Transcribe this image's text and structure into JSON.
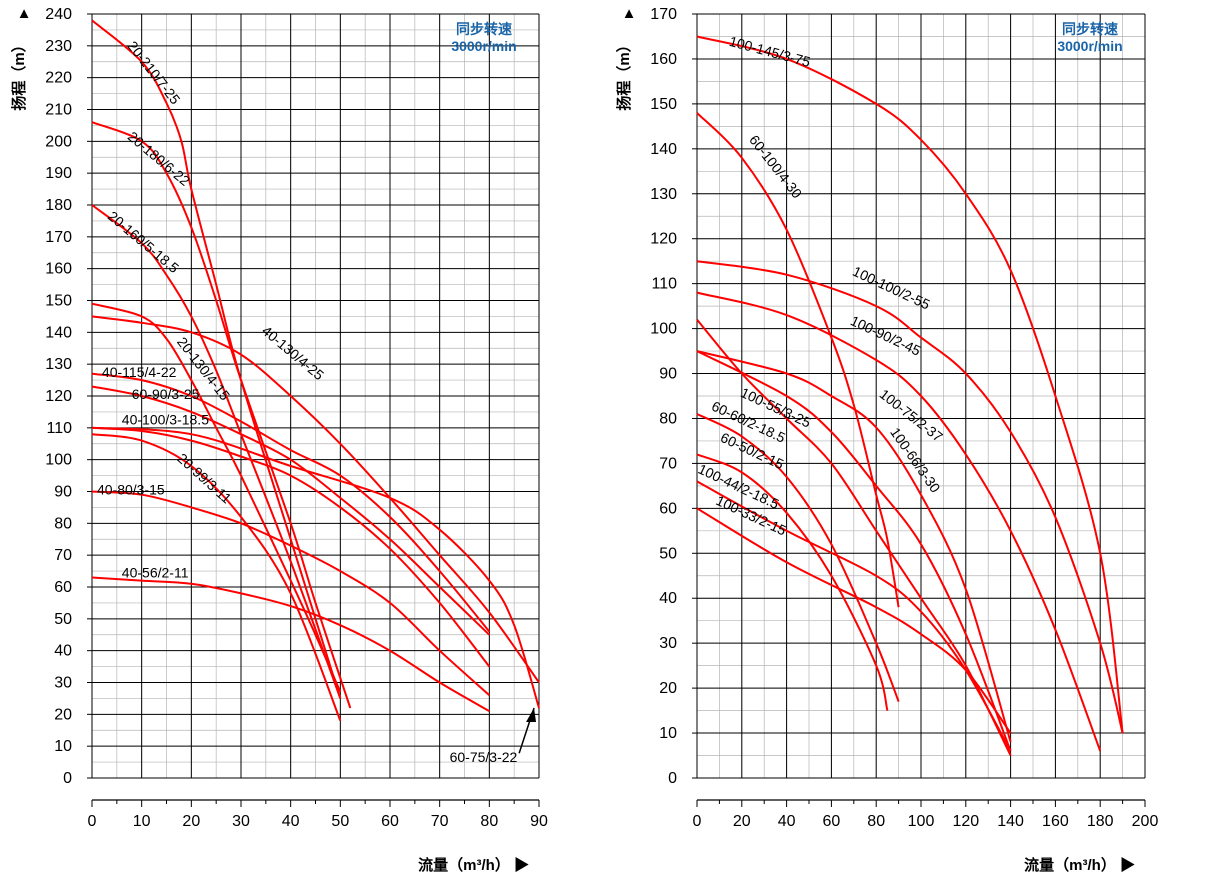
{
  "chart_data": [
    {
      "type": "line",
      "speed_note": [
        "同步转速",
        "3000r/min"
      ],
      "xlabel": "流量（m³/h）",
      "ylabel": "扬程（m）",
      "xlim": [
        0,
        90
      ],
      "ylim": [
        0,
        240
      ],
      "xticks": [
        0,
        10,
        20,
        30,
        40,
        50,
        60,
        70,
        80,
        90
      ],
      "yticks": [
        0,
        10,
        20,
        30,
        40,
        50,
        60,
        70,
        80,
        90,
        100,
        110,
        120,
        130,
        140,
        150,
        160,
        170,
        180,
        190,
        200,
        210,
        220,
        230,
        240
      ],
      "grid": true,
      "curve_color": "#ff0000",
      "series": [
        {
          "name": "20-210/7-25",
          "x": [
            0,
            10,
            15,
            18,
            20,
            25,
            30,
            40,
            45,
            50
          ],
          "y": [
            238,
            225,
            212,
            200,
            185,
            155,
            125,
            75,
            50,
            25
          ]
        },
        {
          "name": "20-180/6-22",
          "x": [
            0,
            10,
            15,
            20,
            25,
            30,
            40,
            45,
            52
          ],
          "y": [
            206,
            200,
            190,
            173,
            150,
            125,
            80,
            55,
            22
          ]
        },
        {
          "name": "20-160/5-18.5",
          "x": [
            0,
            10,
            15,
            20,
            25,
            30,
            40,
            50
          ],
          "y": [
            180,
            168,
            158,
            145,
            128,
            108,
            68,
            25
          ]
        },
        {
          "name": "20-130/4-15",
          "x": [
            0,
            10,
            15,
            20,
            25,
            30,
            40,
            45,
            50
          ],
          "y": [
            149,
            145,
            138,
            125,
            110,
            95,
            62,
            45,
            27
          ]
        },
        {
          "name": "40-130/4-25",
          "x": [
            0,
            10,
            20,
            30,
            40,
            50,
            60,
            70,
            80,
            90
          ],
          "y": [
            145,
            143,
            140,
            133,
            120,
            105,
            88,
            70,
            52,
            30
          ]
        },
        {
          "name": "40-115/4-22",
          "x": [
            0,
            10,
            20,
            30,
            40,
            50,
            60,
            70,
            80
          ],
          "y": [
            127,
            125,
            120,
            112,
            103,
            95,
            82,
            65,
            46
          ]
        },
        {
          "name": "60-90/3-25",
          "x": [
            0,
            10,
            20,
            30,
            40,
            50,
            60,
            70,
            80
          ],
          "y": [
            123,
            120,
            115,
            108,
            100,
            88,
            75,
            60,
            45
          ]
        },
        {
          "name": "40-100/3-18.5",
          "x": [
            0,
            10,
            20,
            30,
            40,
            50,
            60,
            70,
            80
          ],
          "y": [
            110,
            109,
            106,
            101,
            95,
            85,
            72,
            55,
            35
          ]
        },
        {
          "name": "60-75/3-22",
          "x": [
            0,
            20,
            40,
            60,
            70,
            80,
            85,
            90
          ],
          "y": [
            110,
            108,
            98,
            88,
            78,
            62,
            48,
            22
          ]
        },
        {
          "name": "20-99/3-11",
          "x": [
            0,
            10,
            20,
            30,
            40,
            50
          ],
          "y": [
            108,
            106,
            98,
            82,
            58,
            18
          ]
        },
        {
          "name": "40-80/3-15",
          "x": [
            0,
            10,
            20,
            30,
            40,
            50,
            60,
            70,
            80
          ],
          "y": [
            90,
            89,
            85,
            80,
            73,
            65,
            55,
            40,
            26
          ]
        },
        {
          "name": "40-56/2-11",
          "x": [
            0,
            10,
            20,
            30,
            40,
            50,
            60,
            70,
            80
          ],
          "y": [
            63,
            62,
            61,
            58,
            54,
            48,
            40,
            30,
            21
          ]
        }
      ]
    },
    {
      "type": "line",
      "speed_note": [
        "同步转速",
        "3000r/min"
      ],
      "xlabel": "流量（m³/h）",
      "ylabel": "扬程（m）",
      "xlim": [
        0,
        200
      ],
      "ylim": [
        0,
        170
      ],
      "xticks": [
        0,
        20,
        40,
        60,
        80,
        100,
        120,
        140,
        160,
        180,
        200
      ],
      "yticks": [
        0,
        10,
        20,
        30,
        40,
        50,
        60,
        70,
        80,
        90,
        100,
        110,
        120,
        130,
        140,
        150,
        160,
        170
      ],
      "grid": true,
      "curve_color": "#ff0000",
      "series": [
        {
          "name": "100-145/3-75",
          "x": [
            0,
            40,
            80,
            100,
            120,
            140,
            160,
            180,
            190
          ],
          "y": [
            165,
            160,
            150,
            142,
            130,
            113,
            85,
            50,
            10
          ]
        },
        {
          "name": "60-100/4-30",
          "x": [
            0,
            20,
            40,
            60,
            70,
            80,
            85,
            90
          ],
          "y": [
            148,
            138,
            122,
            98,
            83,
            63,
            53,
            38
          ]
        },
        {
          "name": "100-100/2-55",
          "x": [
            0,
            40,
            80,
            100,
            120,
            140,
            160,
            180,
            190
          ],
          "y": [
            115,
            112,
            105,
            98,
            90,
            77,
            58,
            30,
            10
          ]
        },
        {
          "name": "100-90/2-45",
          "x": [
            0,
            40,
            80,
            100,
            120,
            140,
            160,
            180
          ],
          "y": [
            108,
            103,
            93,
            85,
            72,
            55,
            33,
            6
          ]
        },
        {
          "name": "100-75/2-37",
          "x": [
            0,
            40,
            60,
            80,
            100,
            120,
            140
          ],
          "y": [
            95,
            90,
            85,
            78,
            63,
            42,
            8
          ]
        },
        {
          "name": "100-66/3-30",
          "x": [
            0,
            40,
            60,
            80,
            100,
            120,
            140
          ],
          "y": [
            95,
            85,
            77,
            65,
            52,
            32,
            6
          ]
        },
        {
          "name": "100-55/3-25",
          "x": [
            0,
            20,
            40,
            60,
            80,
            100,
            120,
            140
          ],
          "y": [
            102,
            90,
            80,
            70,
            55,
            40,
            25,
            5
          ]
        },
        {
          "name": "60-60/2-18.5",
          "x": [
            0,
            20,
            40,
            60,
            80,
            90
          ],
          "y": [
            81,
            76,
            67,
            52,
            30,
            17
          ]
        },
        {
          "name": "60-50/2-15",
          "x": [
            0,
            20,
            40,
            60,
            80,
            85
          ],
          "y": [
            72,
            68,
            59,
            45,
            25,
            15
          ]
        },
        {
          "name": "100-44/2-18.5",
          "x": [
            0,
            40,
            80,
            100,
            120,
            140
          ],
          "y": [
            66,
            55,
            45,
            37,
            24,
            6
          ]
        },
        {
          "name": "100-33/2-15",
          "x": [
            0,
            40,
            80,
            100,
            120,
            140
          ],
          "y": [
            60,
            48,
            38,
            32,
            24,
            10
          ]
        }
      ]
    }
  ]
}
